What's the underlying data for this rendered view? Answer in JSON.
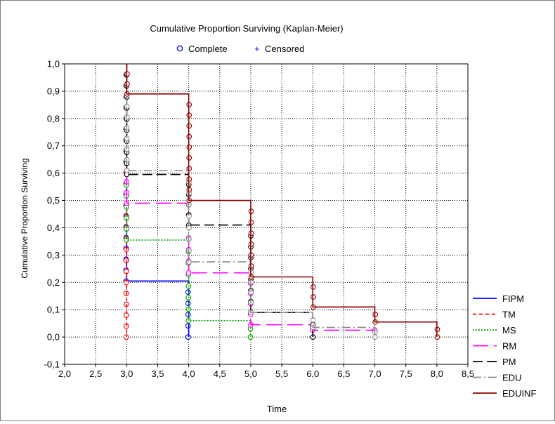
{
  "chart_data": {
    "type": "line",
    "title": "Cumulative Proportion Surviving (Kaplan-Meier)",
    "xlabel": "Time",
    "ylabel": "Cumulative Proportion Surviving",
    "xlim": [
      2.0,
      8.5
    ],
    "ylim": [
      -0.1,
      1.0
    ],
    "xticks": [
      "2,0",
      "2,5",
      "3,0",
      "3,5",
      "4,0",
      "4,5",
      "5,0",
      "5,5",
      "6,0",
      "6,5",
      "7,0",
      "7,5",
      "8,0",
      "8,5"
    ],
    "xtick_values": [
      2.0,
      2.5,
      3.0,
      3.5,
      4.0,
      4.5,
      5.0,
      5.5,
      6.0,
      6.5,
      7.0,
      7.5,
      8.0,
      8.5
    ],
    "yticks": [
      "-0,1",
      "0,0",
      "0,1",
      "0,2",
      "0,3",
      "0,4",
      "0,5",
      "0,6",
      "0,7",
      "0,8",
      "0,9",
      "1,0"
    ],
    "ytick_values": [
      -0.1,
      0.0,
      0.1,
      0.2,
      0.3,
      0.4,
      0.5,
      0.6,
      0.7,
      0.8,
      0.9,
      1.0
    ],
    "grid": true,
    "marker_legend": [
      {
        "label": "Complete",
        "symbol": "o",
        "color": "#0000ff"
      },
      {
        "label": "Censored",
        "symbol": "+",
        "color": "#0000ff"
      }
    ],
    "legend_position": "right",
    "series": [
      {
        "name": "FIPM",
        "color": "#0000ff",
        "dash": "",
        "x": [
          3.0,
          4.0
        ],
        "y": [
          0.205,
          0.0
        ]
      },
      {
        "name": "TM",
        "color": "#ff0000",
        "dash": "5,4",
        "x": [
          3.0
        ],
        "y": [
          0.0
        ]
      },
      {
        "name": "MS",
        "color": "#00a000",
        "dash": "2,2",
        "x": [
          3.0,
          4.0,
          5.0
        ],
        "y": [
          0.355,
          0.06,
          0.0
        ]
      },
      {
        "name": "RM",
        "color": "#ff00ff",
        "dash": "22,8",
        "x": [
          3.0,
          4.0,
          5.0,
          6.0,
          7.0
        ],
        "y": [
          0.49,
          0.235,
          0.045,
          0.025,
          0.025
        ]
      },
      {
        "name": "PM",
        "color": "#000000",
        "dash": "14,6",
        "x": [
          3.0,
          4.0,
          5.0,
          6.0
        ],
        "y": [
          0.595,
          0.41,
          0.09,
          0.0
        ]
      },
      {
        "name": "EDU",
        "color": "#8c8c8c",
        "dash": "12,4,2,4",
        "x": [
          3.0,
          4.0,
          5.0,
          6.0,
          7.0
        ],
        "y": [
          0.61,
          0.275,
          0.09,
          0.035,
          0.0
        ]
      },
      {
        "name": "EDUINF",
        "color": "#8b0000",
        "dash": "",
        "x": [
          3.0,
          4.0,
          5.0,
          6.0,
          7.0,
          8.0
        ],
        "y": [
          0.89,
          0.5,
          0.22,
          0.11,
          0.055,
          0.0
        ]
      }
    ]
  }
}
